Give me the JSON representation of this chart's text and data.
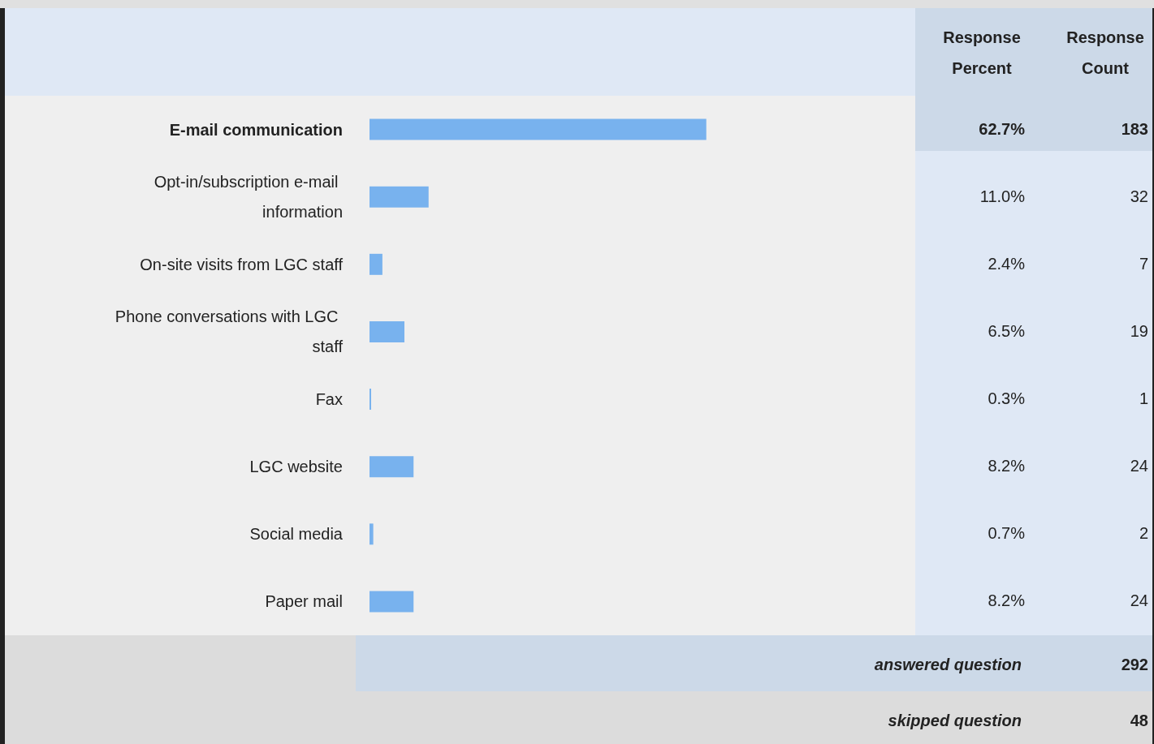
{
  "chart_data": {
    "type": "bar",
    "orientation": "horizontal",
    "categories": [
      "E-mail communication",
      "Opt-in/subscription e-mail information",
      "On-site visits from LGC staff",
      "Phone conversations with LGC staff",
      "Fax",
      "LGC website",
      "Social media",
      "Paper mail"
    ],
    "values": [
      62.7,
      11.0,
      2.4,
      6.5,
      0.3,
      8.2,
      0.7,
      8.2
    ],
    "value_labels": [
      "62.7%",
      "11.0%",
      "2.4%",
      "6.5%",
      "0.3%",
      "8.2%",
      "0.7%",
      "8.2%"
    ],
    "color": "#78b2ee",
    "annotations": [
      "Response Percent",
      "Response Count",
      "answered question",
      "292",
      "skipped question",
      "48",
      "183",
      "32",
      "7",
      "19",
      "1",
      "24",
      "2",
      "24"
    ]
  }
}
